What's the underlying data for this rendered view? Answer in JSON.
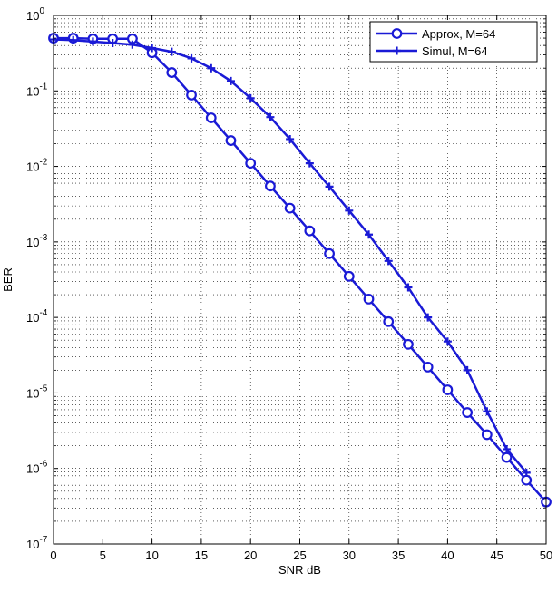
{
  "chart_data": {
    "type": "line",
    "title": "",
    "xlabel": "SNR dB",
    "ylabel": "BER",
    "x_scale": "linear",
    "y_scale": "log",
    "xlim": [
      0,
      50
    ],
    "ylim": [
      1e-07,
      1
    ],
    "x_ticks": [
      0,
      5,
      10,
      15,
      20,
      25,
      30,
      35,
      40,
      45,
      50
    ],
    "y_tick_labels": [
      {
        "base": "10",
        "exp": "0"
      },
      {
        "base": "10",
        "exp": "-1"
      },
      {
        "base": "10",
        "exp": "-2"
      },
      {
        "base": "10",
        "exp": "-3"
      },
      {
        "base": "10",
        "exp": "-4"
      },
      {
        "base": "10",
        "exp": "-5"
      },
      {
        "base": "10",
        "exp": "-6"
      },
      {
        "base": "10",
        "exp": "-7"
      }
    ],
    "grid": true,
    "legend_position": "top-right",
    "series": [
      {
        "name": "Approx, M=64",
        "marker": "circle",
        "color": "#1a1ad6",
        "x": [
          0,
          2,
          4,
          6,
          8,
          10,
          12,
          14,
          16,
          18,
          20,
          22,
          24,
          26,
          28,
          30,
          32,
          34,
          36,
          38,
          40,
          42,
          44,
          46,
          48,
          50
        ],
        "y": [
          0.5,
          0.5,
          0.49,
          0.49,
          0.49,
          0.32,
          0.175,
          0.088,
          0.044,
          0.022,
          0.011,
          0.0055,
          0.0028,
          0.0014,
          0.0007,
          0.00035,
          0.000175,
          8.8e-05,
          4.4e-05,
          2.2e-05,
          1.1e-05,
          5.5e-06,
          2.8e-06,
          1.4e-06,
          7e-07,
          3.6e-07
        ]
      },
      {
        "name": "Simul, M=64",
        "marker": "plus",
        "color": "#1a1ad6",
        "x": [
          0,
          2,
          4,
          6,
          8,
          10,
          12,
          14,
          16,
          18,
          20,
          22,
          24,
          26,
          28,
          30,
          32,
          34,
          36,
          38,
          40,
          42,
          44,
          46,
          48
        ],
        "y": [
          0.48,
          0.47,
          0.45,
          0.43,
          0.41,
          0.37,
          0.33,
          0.27,
          0.2,
          0.135,
          0.08,
          0.045,
          0.023,
          0.011,
          0.0054,
          0.0026,
          0.00125,
          0.00056,
          0.00025,
          0.0001,
          4.8e-05,
          2e-05,
          5.7e-06,
          1.8e-06,
          8.8e-07
        ]
      }
    ]
  }
}
